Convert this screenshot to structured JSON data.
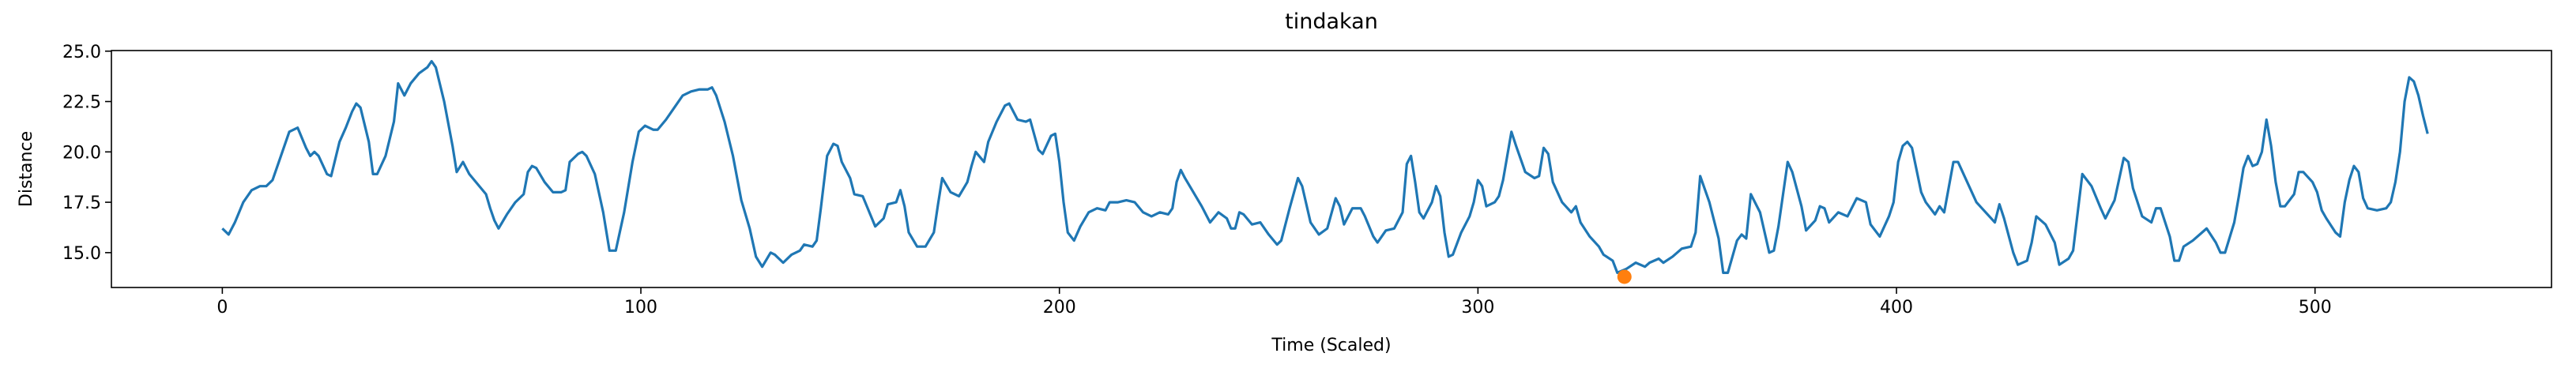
{
  "chart_data": {
    "type": "line",
    "title": "tindakan",
    "x_label": "Time (Scaled)",
    "y_label": "Distance",
    "color": "#1f77b4",
    "x": [
      0,
      1.5,
      3,
      5,
      7,
      9,
      10.5,
      12,
      14,
      16,
      18,
      20,
      21,
      22,
      23,
      25,
      26,
      28,
      29.5,
      31,
      32,
      33,
      35,
      36,
      37,
      39,
      41,
      42,
      43.5,
      45,
      47,
      49,
      50,
      51,
      53,
      55,
      56,
      57.5,
      59,
      61,
      63,
      64,
      65,
      66,
      68,
      70,
      72,
      73,
      74,
      75,
      77,
      79,
      81,
      82,
      83,
      85,
      86,
      87,
      89,
      91,
      92.5,
      94,
      96,
      98,
      99.5,
      101,
      103,
      104,
      106,
      108,
      110,
      112,
      114,
      116,
      117,
      118,
      120,
      122,
      124,
      126,
      127.5,
      129,
      131,
      132,
      134,
      136,
      138,
      139,
      141,
      142,
      143,
      144.5,
      146,
      147,
      148,
      150,
      151,
      153,
      154,
      156,
      158,
      159,
      161,
      162,
      163,
      164,
      166,
      168,
      170,
      171,
      172,
      174,
      176,
      178,
      179,
      180,
      182,
      183,
      185,
      187,
      188,
      190,
      192,
      193,
      195,
      196,
      198,
      199,
      200,
      201,
      202,
      203.5,
      205,
      207,
      209,
      211,
      212,
      214,
      216,
      218,
      220,
      222,
      224,
      226,
      227,
      228,
      229,
      230,
      232,
      234,
      236,
      238,
      240,
      241,
      242,
      243,
      244,
      246,
      248,
      250,
      252,
      253,
      255,
      257,
      258,
      260,
      262,
      264,
      266,
      267,
      268,
      270,
      272,
      273,
      275,
      276,
      278,
      280,
      282,
      283,
      284,
      285,
      286,
      287,
      289,
      290,
      291,
      292,
      293,
      294,
      296,
      298,
      299,
      300,
      301,
      302,
      304,
      305,
      306,
      308,
      309.1,
      311.3,
      313.5,
      314.6,
      315.7,
      316.8,
      317.9,
      320.1,
      322.3,
      323.4,
      324.5,
      326.7,
      328.9,
      330,
      332.2,
      333.3,
      335.5,
      337.7,
      339.9,
      341,
      343.2,
      344.3,
      346.5,
      348.7,
      350.9,
      352,
      353.1,
      355.3,
      357.5,
      358.6,
      359.7,
      361.9,
      363,
      364.1,
      365.2,
      367.4,
      369.6,
      370.7,
      371.8,
      374,
      375.1,
      377.3,
      378.4,
      380.6,
      381.7,
      382.8,
      383.9,
      386.1,
      388.3,
      390.5,
      392.7,
      393.8,
      396,
      398.2,
      399.3,
      400.4,
      401.5,
      402.6,
      403.7,
      405.9,
      407,
      409.2,
      410.3,
      411.4,
      413.6,
      414.7,
      416.9,
      419.1,
      421.3,
      423.5,
      424.6,
      425.7,
      427.9,
      429,
      431.2,
      432.3,
      433.4,
      435.6,
      437.8,
      438.9,
      441.1,
      442.2,
      443.3,
      444.4,
      446.6,
      448.8,
      449.9,
      452.1,
      454.3,
      455.4,
      456.5,
      458.7,
      460.9,
      462,
      463.1,
      465.3,
      466.4,
      467.5,
      468.6,
      470.8,
      473,
      474.1,
      476.3,
      477.4,
      478.5,
      480.7,
      481.8,
      482.9,
      484,
      485.1,
      486.2,
      487.3,
      488.4,
      489.5,
      490.6,
      491.7,
      492.8,
      495,
      496.1,
      497.2,
      499.4,
      500.5,
      501.6,
      502.7,
      504.9,
      506,
      507.1,
      508.2,
      509.3,
      510.4,
      511.5,
      512.6,
      514.8,
      517,
      518.1,
      519.2,
      520.3,
      521.4,
      522.5,
      523.6,
      524.7,
      525.8,
      526.9
    ],
    "values": [
      16.2,
      15.9,
      16.5,
      17.5,
      18.1,
      18.3,
      18.3,
      18.6,
      19.8,
      21.0,
      21.2,
      20.2,
      19.8,
      20.0,
      19.8,
      18.9,
      18.8,
      20.5,
      21.2,
      22.0,
      22.4,
      22.2,
      20.5,
      18.9,
      18.9,
      19.8,
      21.5,
      23.4,
      22.8,
      23.4,
      23.9,
      24.2,
      24.5,
      24.2,
      22.5,
      20.3,
      19.0,
      19.5,
      18.9,
      18.4,
      17.9,
      17.2,
      16.6,
      16.2,
      16.9,
      17.5,
      17.9,
      19.0,
      19.3,
      19.2,
      18.5,
      18.0,
      18.0,
      18.1,
      19.5,
      19.9,
      20.0,
      19.8,
      18.9,
      17.0,
      15.1,
      15.1,
      17.0,
      19.5,
      21.0,
      21.3,
      21.1,
      21.1,
      21.6,
      22.2,
      22.8,
      23.0,
      23.1,
      23.1,
      23.2,
      22.8,
      21.5,
      19.8,
      17.6,
      16.2,
      14.8,
      14.3,
      15.0,
      14.9,
      14.5,
      14.9,
      15.1,
      15.4,
      15.3,
      15.6,
      17.2,
      19.8,
      20.4,
      20.3,
      19.5,
      18.7,
      17.9,
      17.8,
      17.3,
      16.3,
      16.7,
      17.4,
      17.5,
      18.1,
      17.3,
      16.0,
      15.3,
      15.3,
      16.0,
      17.4,
      18.7,
      18.0,
      17.8,
      18.5,
      19.3,
      20.0,
      19.5,
      20.5,
      21.5,
      22.3,
      22.4,
      21.6,
      21.5,
      21.6,
      20.1,
      19.9,
      20.8,
      20.9,
      19.5,
      17.5,
      16.0,
      15.6,
      16.3,
      17.0,
      17.2,
      17.1,
      17.5,
      17.5,
      17.6,
      17.5,
      17.0,
      16.8,
      17.0,
      16.9,
      17.2,
      18.5,
      19.1,
      18.7,
      18.0,
      17.3,
      16.5,
      17.0,
      16.7,
      16.2,
      16.2,
      17.0,
      16.9,
      16.4,
      16.5,
      15.9,
      15.4,
      15.6,
      17.2,
      18.7,
      18.3,
      16.5,
      15.9,
      16.2,
      17.7,
      17.3,
      16.4,
      17.2,
      17.2,
      16.8,
      15.8,
      15.5,
      16.1,
      16.2,
      17.0,
      19.4,
      19.8,
      18.5,
      17.0,
      16.7,
      17.5,
      18.3,
      17.8,
      16.0,
      14.8,
      14.9,
      16.0,
      16.8,
      17.5,
      18.6,
      18.3,
      17.3,
      17.5,
      17.8,
      18.6,
      21.0,
      20.3,
      19.0,
      18.7,
      18.8,
      20.2,
      19.9,
      18.5,
      17.5,
      17.0,
      17.3,
      16.5,
      15.8,
      15.3,
      14.9,
      14.6,
      14.0,
      14.2,
      14.5,
      14.3,
      14.5,
      14.7,
      14.5,
      14.8,
      15.2,
      15.3,
      16.0,
      18.8,
      17.5,
      15.7,
      14.0,
      14.0,
      15.6,
      15.9,
      15.7,
      17.9,
      17.0,
      15.0,
      15.1,
      16.3,
      19.5,
      19.0,
      17.3,
      16.1,
      16.6,
      17.3,
      17.2,
      16.5,
      17.0,
      16.8,
      17.7,
      17.5,
      16.4,
      15.8,
      16.8,
      17.5,
      19.5,
      20.3,
      20.5,
      20.2,
      18.0,
      17.5,
      16.9,
      17.3,
      17.0,
      19.5,
      19.5,
      18.5,
      17.5,
      17.0,
      16.5,
      17.4,
      16.7,
      15.0,
      14.4,
      14.6,
      15.5,
      16.8,
      16.4,
      15.5,
      14.4,
      14.7,
      15.1,
      17.0,
      18.9,
      18.3,
      17.2,
      16.7,
      17.6,
      19.7,
      19.5,
      18.2,
      16.8,
      16.5,
      17.2,
      17.2,
      15.8,
      14.6,
      14.6,
      15.3,
      15.6,
      16.0,
      16.2,
      15.5,
      15.0,
      15.0,
      16.5,
      17.8,
      19.2,
      19.8,
      19.3,
      19.4,
      20.0,
      21.6,
      20.3,
      18.5,
      17.3,
      17.3,
      17.9,
      19.0,
      19.0,
      18.5,
      18.0,
      17.1,
      16.7,
      16.0,
      15.8,
      17.5,
      18.6,
      19.3,
      19.0,
      17.7,
      17.2,
      17.1,
      17.2,
      17.5,
      18.5,
      20.0,
      22.5,
      23.7,
      23.5,
      22.8,
      21.8,
      20.9
    ],
    "marker": {
      "x": 335,
      "y": 13.8,
      "color": "#ff7f0e"
    },
    "xlim": [
      -26.5,
      556.5
    ],
    "ylim": [
      13.27,
      25.03
    ],
    "xticks": [
      0,
      100,
      200,
      300,
      400,
      500
    ],
    "yticks": [
      {
        "value": 15,
        "label": "15.0"
      },
      {
        "value": 17.5,
        "label": "17.5"
      },
      {
        "value": 20,
        "label": "20.0"
      },
      {
        "value": 22.5,
        "label": "22.5"
      },
      {
        "value": 25,
        "label": "25.0"
      }
    ]
  }
}
